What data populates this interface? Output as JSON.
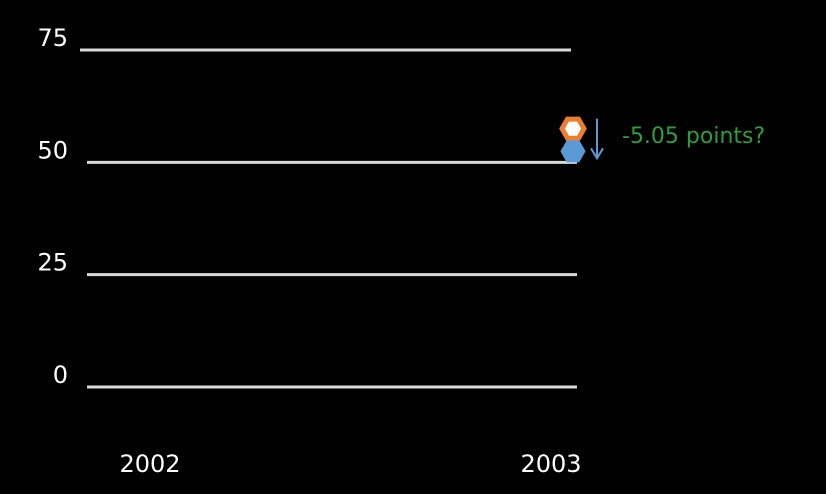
{
  "chart_data": {
    "type": "scatter",
    "ylim": [
      0,
      75
    ],
    "y_ticks": [
      "75",
      "50",
      "25",
      "0"
    ],
    "x_ticks": [
      "2002",
      "2003"
    ],
    "grid": true,
    "points": [
      {
        "x": 2003,
        "y": 57.5,
        "color": "#ED7D31",
        "shape": "hexagon"
      },
      {
        "x": 2003,
        "y": 52.45,
        "color": "#5B9BD5",
        "shape": "hexagon"
      }
    ],
    "arrow": {
      "from": 57.5,
      "to": 52.45,
      "color": "#5B9BD5"
    },
    "annotation": {
      "text": "-5.05 points?",
      "color": "#2E9E3A"
    }
  }
}
